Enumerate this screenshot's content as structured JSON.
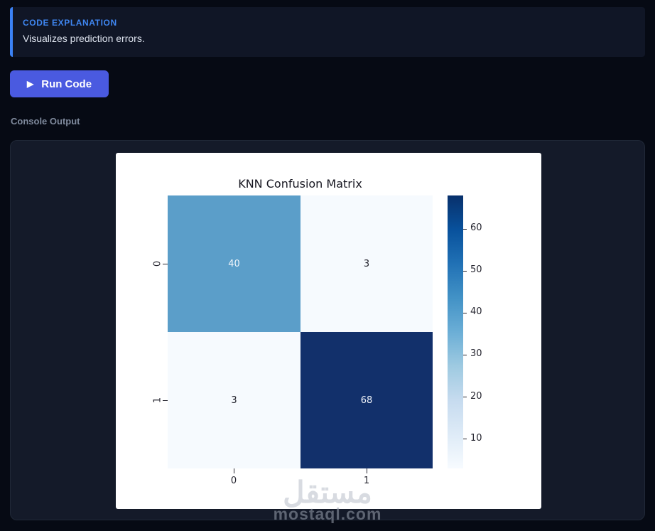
{
  "explanation": {
    "label": "CODE EXPLANATION",
    "text": "Visualizes prediction errors.",
    "accent_color": "#3b82f6",
    "label_color": "#3f86f0",
    "bg": "#101626"
  },
  "run_button": {
    "label": "Run Code",
    "icon": "play-icon",
    "bg": "#4a5ae0"
  },
  "console": {
    "label": "Console Output",
    "bg": "#141a29"
  },
  "chart_data": {
    "type": "heatmap",
    "title": "KNN Confusion Matrix",
    "colormap": "Blues",
    "x_tick_labels": [
      "0",
      "1"
    ],
    "y_tick_labels": [
      "0",
      "1"
    ],
    "matrix": [
      [
        40,
        3
      ],
      [
        3,
        68
      ]
    ],
    "cell_colors": [
      [
        "#5b9ec9",
        "#f6fafe"
      ],
      [
        "#f6fafe",
        "#12306b"
      ]
    ],
    "cell_text_colors": [
      [
        "#f0f5fa",
        "#22222c"
      ],
      [
        "#22222c",
        "#edf1f8"
      ]
    ],
    "colorbar": {
      "vmin": 3,
      "vmax": 68,
      "ticks": [
        10,
        20,
        30,
        40,
        50,
        60
      ],
      "gradient": [
        "#f7fbff",
        "#deebf7",
        "#c6dbef",
        "#9ecae1",
        "#6baed6",
        "#4292c6",
        "#2171b5",
        "#08519c",
        "#08306b"
      ]
    },
    "legend_position": "right",
    "grid": false
  },
  "watermark": {
    "arabic": "مستقل",
    "domain": "mostaql.com"
  }
}
